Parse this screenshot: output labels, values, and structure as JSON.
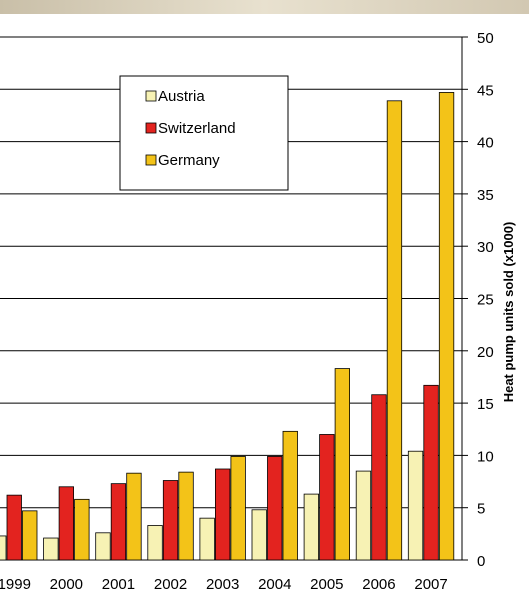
{
  "chart_data": {
    "type": "bar",
    "categories": [
      "1999",
      "2000",
      "2001",
      "2002",
      "2003",
      "2004",
      "2005",
      "2006",
      "2007"
    ],
    "series": [
      {
        "name": "Austria",
        "color": "#f7f2b4",
        "values": [
          2.3,
          2.1,
          2.6,
          3.3,
          4.0,
          4.8,
          6.3,
          8.5,
          10.4
        ]
      },
      {
        "name": "Switzerland",
        "color": "#e3231f",
        "values": [
          6.2,
          7.0,
          7.3,
          7.6,
          8.7,
          9.9,
          12.0,
          15.8,
          16.7
        ]
      },
      {
        "name": "Germany",
        "color": "#f3c318",
        "values": [
          4.7,
          5.8,
          8.3,
          8.4,
          9.9,
          12.3,
          18.3,
          43.9,
          44.7
        ]
      }
    ],
    "ylabel": "Heat pump units sold (x1000)",
    "ylim": [
      0,
      50
    ],
    "yticks": [
      0,
      5,
      10,
      15,
      20,
      25,
      30,
      35,
      40,
      45,
      50
    ],
    "y_axis_position": "right",
    "grid": true,
    "legend_position": "top-left"
  }
}
